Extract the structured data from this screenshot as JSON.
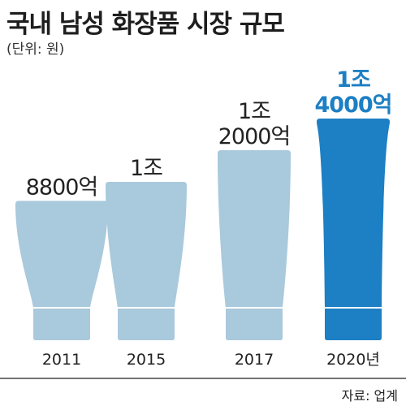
{
  "header": {
    "title": "국내 남성 화장품 시장 규모",
    "unit": "(단위: 원)"
  },
  "source": "자료: 업계",
  "colors": {
    "bar": "#a9c9dc",
    "bar_highlight": "#1d7fc4",
    "highlight_label": "#1d7fc4",
    "axis": "#444444",
    "text": "#222222"
  },
  "chart_data": {
    "type": "bar",
    "categories": [
      "2011",
      "2015",
      "2017",
      "2020년"
    ],
    "values": [
      8800,
      10000,
      12000,
      14000
    ],
    "value_unit": "억 원",
    "data_labels": [
      [
        "8800억"
      ],
      [
        "1조"
      ],
      [
        "1조",
        "2000억"
      ],
      [
        "1조",
        "4000억"
      ]
    ],
    "highlight_index": 3,
    "ylim": [
      0,
      14000
    ]
  }
}
